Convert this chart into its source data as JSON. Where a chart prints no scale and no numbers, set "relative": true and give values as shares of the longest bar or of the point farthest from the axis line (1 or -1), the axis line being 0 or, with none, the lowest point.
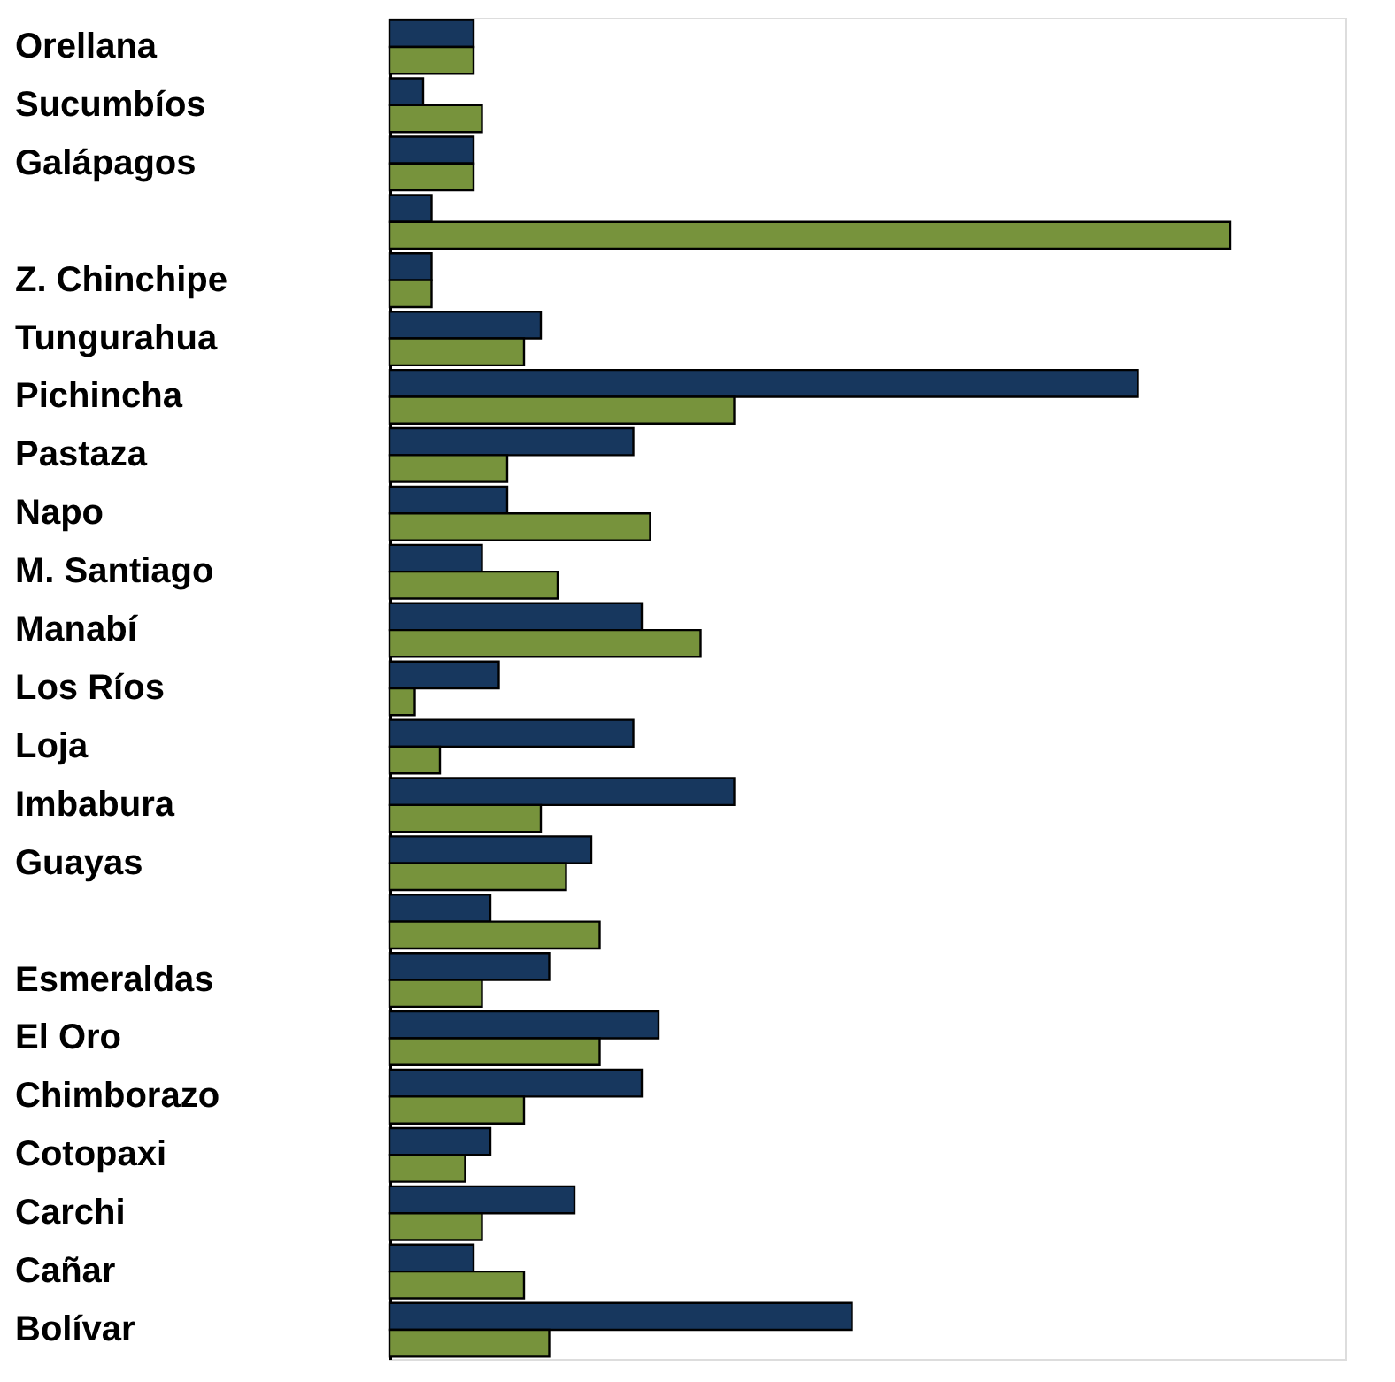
{
  "chart_data": {
    "type": "bar",
    "orientation": "horizontal",
    "relative": true,
    "categories": [
      "Orellana",
      "Sucumbíos",
      "Galápagos",
      null,
      "Z. Chinchipe",
      "Tungurahua",
      "Pichincha",
      "Pastaza",
      "Napo",
      "M. Santiago",
      "Manabí",
      "Los Ríos",
      "Loja",
      "Imbabura",
      "Guayas",
      null,
      "Esmeraldas",
      "El Oro",
      "Chimborazo",
      "Cotopaxi",
      "Carchi",
      "Cañar",
      "Bolívar"
    ],
    "series": [
      {
        "color": "#17375e",
        "values": [
          0.1,
          0.04,
          0.1,
          0.05,
          0.05,
          0.18,
          0.89,
          0.29,
          0.14,
          0.11,
          0.3,
          0.13,
          0.29,
          0.41,
          0.24,
          0.12,
          0.19,
          0.32,
          0.3,
          0.12,
          0.22,
          0.1,
          0.55
        ]
      },
      {
        "color": "#77933c",
        "values": [
          0.1,
          0.11,
          0.1,
          1.0,
          0.05,
          0.16,
          0.41,
          0.14,
          0.31,
          0.2,
          0.37,
          0.03,
          0.06,
          0.18,
          0.21,
          0.25,
          0.11,
          0.25,
          0.16,
          0.09,
          0.11,
          0.16,
          0.19
        ]
      }
    ]
  }
}
